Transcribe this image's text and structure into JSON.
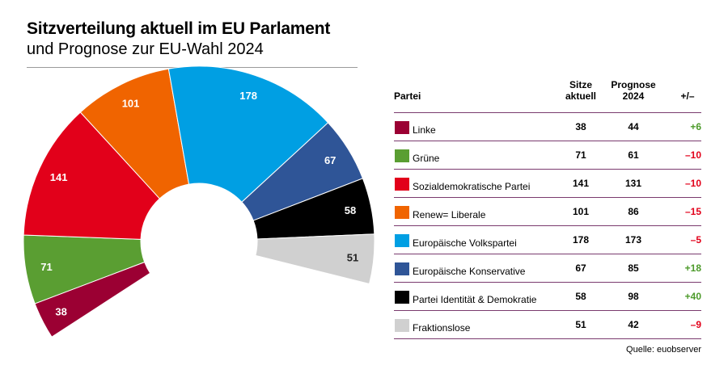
{
  "title": "Sitzverteilung aktuell im EU Parlament",
  "subtitle": "und Prognose zur EU-Wahl 2024",
  "source": "Quelle: euobserver",
  "table_headers": {
    "partei": "Partei",
    "sitze": "Sitze aktuell",
    "prognose": "Prognose 2024",
    "diff": "+/–"
  },
  "chart_data": {
    "type": "pie",
    "variant": "parliament-half-donut",
    "categories": [
      "Linke",
      "Grüne",
      "Sozialdemokratische Partei",
      "Renew= Liberale",
      "Europäische Volkspartei",
      "Europäische Konservative",
      "Partei Identität & Demokratie",
      "Fraktionslose"
    ],
    "series": [
      {
        "name": "Sitze aktuell",
        "values": [
          38,
          71,
          141,
          101,
          178,
          67,
          58,
          51
        ]
      },
      {
        "name": "Prognose 2024",
        "values": [
          44,
          61,
          131,
          86,
          173,
          85,
          98,
          42
        ]
      }
    ],
    "diff": [
      "+6",
      "–10",
      "–10",
      "–15",
      "–5",
      "+18",
      "+40",
      "–9"
    ],
    "colors": [
      "#9b0033",
      "#5a9e32",
      "#e2001a",
      "#f06400",
      "#009fe3",
      "#2f5597",
      "#000000",
      "#d0d0d0"
    ],
    "label_colors": [
      "#ffffff",
      "#ffffff",
      "#ffffff",
      "#ffffff",
      "#ffffff",
      "#ffffff",
      "#ffffff",
      "#222222"
    ]
  }
}
